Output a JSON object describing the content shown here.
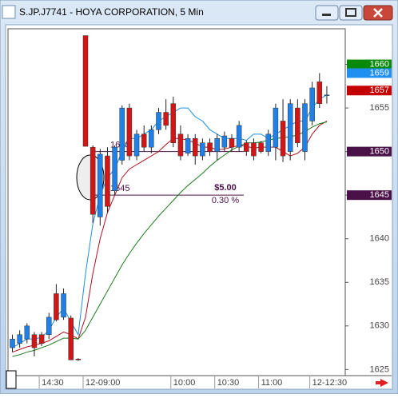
{
  "chart_data": {
    "type": "candlestick",
    "title": "S.JP.J7741 - HOYA CORPORATION, 5 Min",
    "categories": [
      null,
      null,
      null,
      null,
      "14:30",
      null,
      null,
      null,
      null,
      null,
      "12-09:00",
      null,
      null,
      null,
      null,
      null,
      null,
      null,
      null,
      null,
      null,
      null,
      "10:00",
      null,
      null,
      null,
      null,
      null,
      "10:30",
      null,
      null,
      null,
      null,
      null,
      "11:00",
      null,
      null,
      null,
      null,
      null,
      null,
      "12-12:30",
      null,
      null
    ],
    "open": [
      1627.5,
      1628,
      1628.5,
      1629,
      1629,
      1629,
      1633.7,
      1631,
      1630.9,
      1626.2,
      1663.3,
      1650.5,
      1642.5,
      1649.5,
      1645.5,
      1649,
      1655,
      1649.5,
      1652,
      1650.5,
      1652.5,
      1654.5,
      1655.5,
      1652,
      1649.8,
      1651.5,
      1649.5,
      1651,
      1650,
      1650.5,
      1651.5,
      1650.5,
      1651,
      1651,
      1651,
      1650,
      1650.5,
      1653.5,
      1650,
      1655,
      1650,
      1653.5,
      1658,
      1656.5
    ],
    "high": [
      1629,
      1629.5,
      1630.3,
      1629.3,
      1629.3,
      1631.5,
      1634.8,
      1634.3,
      1631.2,
      1626.3,
      1663.3,
      1650.7,
      1650.3,
      1650.5,
      1650.7,
      1655.3,
      1655.5,
      1652.5,
      1653,
      1653,
      1655,
      1656,
      1656.3,
      1653,
      1652,
      1652,
      1651.5,
      1651.5,
      1652,
      1652.3,
      1652,
      1653.5,
      1651.3,
      1651.5,
      1651.2,
      1652.5,
      1655.5,
      1656,
      1656,
      1656,
      1656,
      1658,
      1659,
      1657.5
    ],
    "low": [
      1627,
      1627.5,
      1628,
      1626.5,
      1627.7,
      1628.5,
      1630.5,
      1630.7,
      1626.1,
      1626,
      1650.6,
      1641.8,
      1641.5,
      1643,
      1645,
      1648.5,
      1649,
      1649,
      1650,
      1649.8,
      1652,
      1652.5,
      1650.5,
      1649,
      1649.5,
      1648.5,
      1649,
      1649.5,
      1649,
      1650,
      1650,
      1650,
      1649.5,
      1649,
      1649.8,
      1649.5,
      1649,
      1648.8,
      1649,
      1650.5,
      1649,
      1653,
      1655,
      1655.5
    ],
    "close": [
      1628.5,
      1629,
      1630,
      1627.5,
      1628,
      1631,
      1630.7,
      1633.7,
      1626.1,
      1626.1,
      1650.6,
      1642.8,
      1649.7,
      1643.7,
      1650.5,
      1655,
      1649.5,
      1652,
      1650.5,
      1652.5,
      1654.5,
      1653,
      1651,
      1649.5,
      1651.5,
      1649.5,
      1651,
      1650,
      1651.5,
      1651.8,
      1650.5,
      1653,
      1650,
      1649.5,
      1650,
      1652,
      1655,
      1649.5,
      1655.5,
      1651,
      1655.5,
      1657.3,
      1655.5,
      1656.5
    ],
    "up_color": "#1f80e8",
    "down_color": "#d41515",
    "lines": [
      {
        "color": "#1c8fdc",
        "values": [
          1627.5,
          1628,
          1628.5,
          1628.5,
          1628.7,
          1629.5,
          1631,
          1632,
          1630.5,
          1629,
          1636,
          1641.7,
          1645,
          1647,
          1648,
          1650,
          1651.5,
          1651.5,
          1652,
          1652.5,
          1653.5,
          1654,
          1654.5,
          1655,
          1655,
          1654,
          1653.5,
          1652.5,
          1652,
          1651.5,
          1651.5,
          1651.5,
          1651.3,
          1652,
          1652,
          1651.5,
          1652,
          1652.5,
          1653,
          1653.5,
          1653.5,
          1655,
          1656,
          1656.5
        ]
      },
      {
        "color": "#b01020",
        "values": [
          1627,
          1627.3,
          1627.6,
          1627.8,
          1628,
          1628.3,
          1628.8,
          1629.3,
          1629,
          1628.5,
          1631,
          1636,
          1640,
          1643,
          1645,
          1647,
          1648,
          1648.5,
          1649,
          1649.5,
          1650,
          1650.8,
          1651.5,
          1651.5,
          1651.3,
          1651,
          1650.5,
          1650.5,
          1650.2,
          1650.3,
          1650.5,
          1650.7,
          1650.6,
          1650.4,
          1650.5,
          1650.5,
          1650.5,
          1650,
          1649.5,
          1649.8,
          1650.5,
          1652,
          1653,
          1653.5
        ]
      },
      {
        "color": "#1a7a1a",
        "values": [
          1626.5,
          1626.7,
          1627,
          1627.2,
          1627.5,
          1627.8,
          1628.2,
          1628.6,
          1628.6,
          1628.5,
          1629.5,
          1631,
          1632.5,
          1634,
          1635.5,
          1637,
          1638.3,
          1639.5,
          1640.6,
          1641.6,
          1642.6,
          1643.5,
          1644.4,
          1645.3,
          1646.1,
          1646.8,
          1647.5,
          1648.3,
          1649,
          1649.6,
          1650.2,
          1650.6,
          1651,
          1651,
          1651.1,
          1651.3,
          1651.5,
          1651.6,
          1651.7,
          1651.9,
          1652.3,
          1652.8,
          1653.2,
          1653.4
        ]
      }
    ],
    "ylim": [
      1624.3,
      1663.9
    ],
    "yticks": [
      1625,
      1630,
      1635,
      1640,
      1645,
      1650,
      1655,
      1660
    ],
    "levels": [
      1650,
      1645
    ],
    "level_color": "#4a1048",
    "difference": "$5.00",
    "percent": "0.30 %",
    "price_tags": [
      {
        "value": 1660,
        "color": "#0a8a0a"
      },
      {
        "value": 1659,
        "color": "#1f8ff0"
      },
      {
        "value": 1657,
        "color": "#c40000"
      }
    ]
  }
}
